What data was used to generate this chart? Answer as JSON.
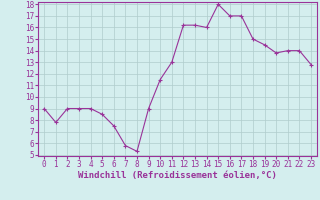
{
  "x": [
    0,
    1,
    2,
    3,
    4,
    5,
    6,
    7,
    8,
    9,
    10,
    11,
    12,
    13,
    14,
    15,
    16,
    17,
    18,
    19,
    20,
    21,
    22,
    23
  ],
  "y": [
    9.0,
    7.8,
    9.0,
    9.0,
    9.0,
    8.5,
    7.5,
    5.8,
    5.3,
    9.0,
    11.5,
    13.0,
    16.2,
    16.2,
    16.0,
    18.0,
    17.0,
    17.0,
    15.0,
    14.5,
    13.8,
    14.0,
    14.0,
    12.8
  ],
  "line_color": "#993399",
  "marker": "+",
  "marker_size": 3,
  "background_color": "#d4eeee",
  "grid_color": "#b0cccc",
  "xlabel": "Windchill (Refroidissement éolien,°C)",
  "xlabel_color": "#993399",
  "ylim": [
    5,
    18
  ],
  "yticks": [
    5,
    6,
    7,
    8,
    9,
    10,
    11,
    12,
    13,
    14,
    15,
    16,
    17,
    18
  ],
  "xticks": [
    0,
    1,
    2,
    3,
    4,
    5,
    6,
    7,
    8,
    9,
    10,
    11,
    12,
    13,
    14,
    15,
    16,
    17,
    18,
    19,
    20,
    21,
    22,
    23
  ],
  "tick_fontsize": 5.5,
  "xlabel_fontsize": 6.5,
  "axis_color": "#993399",
  "spine_color": "#993399",
  "linewidth": 0.8
}
